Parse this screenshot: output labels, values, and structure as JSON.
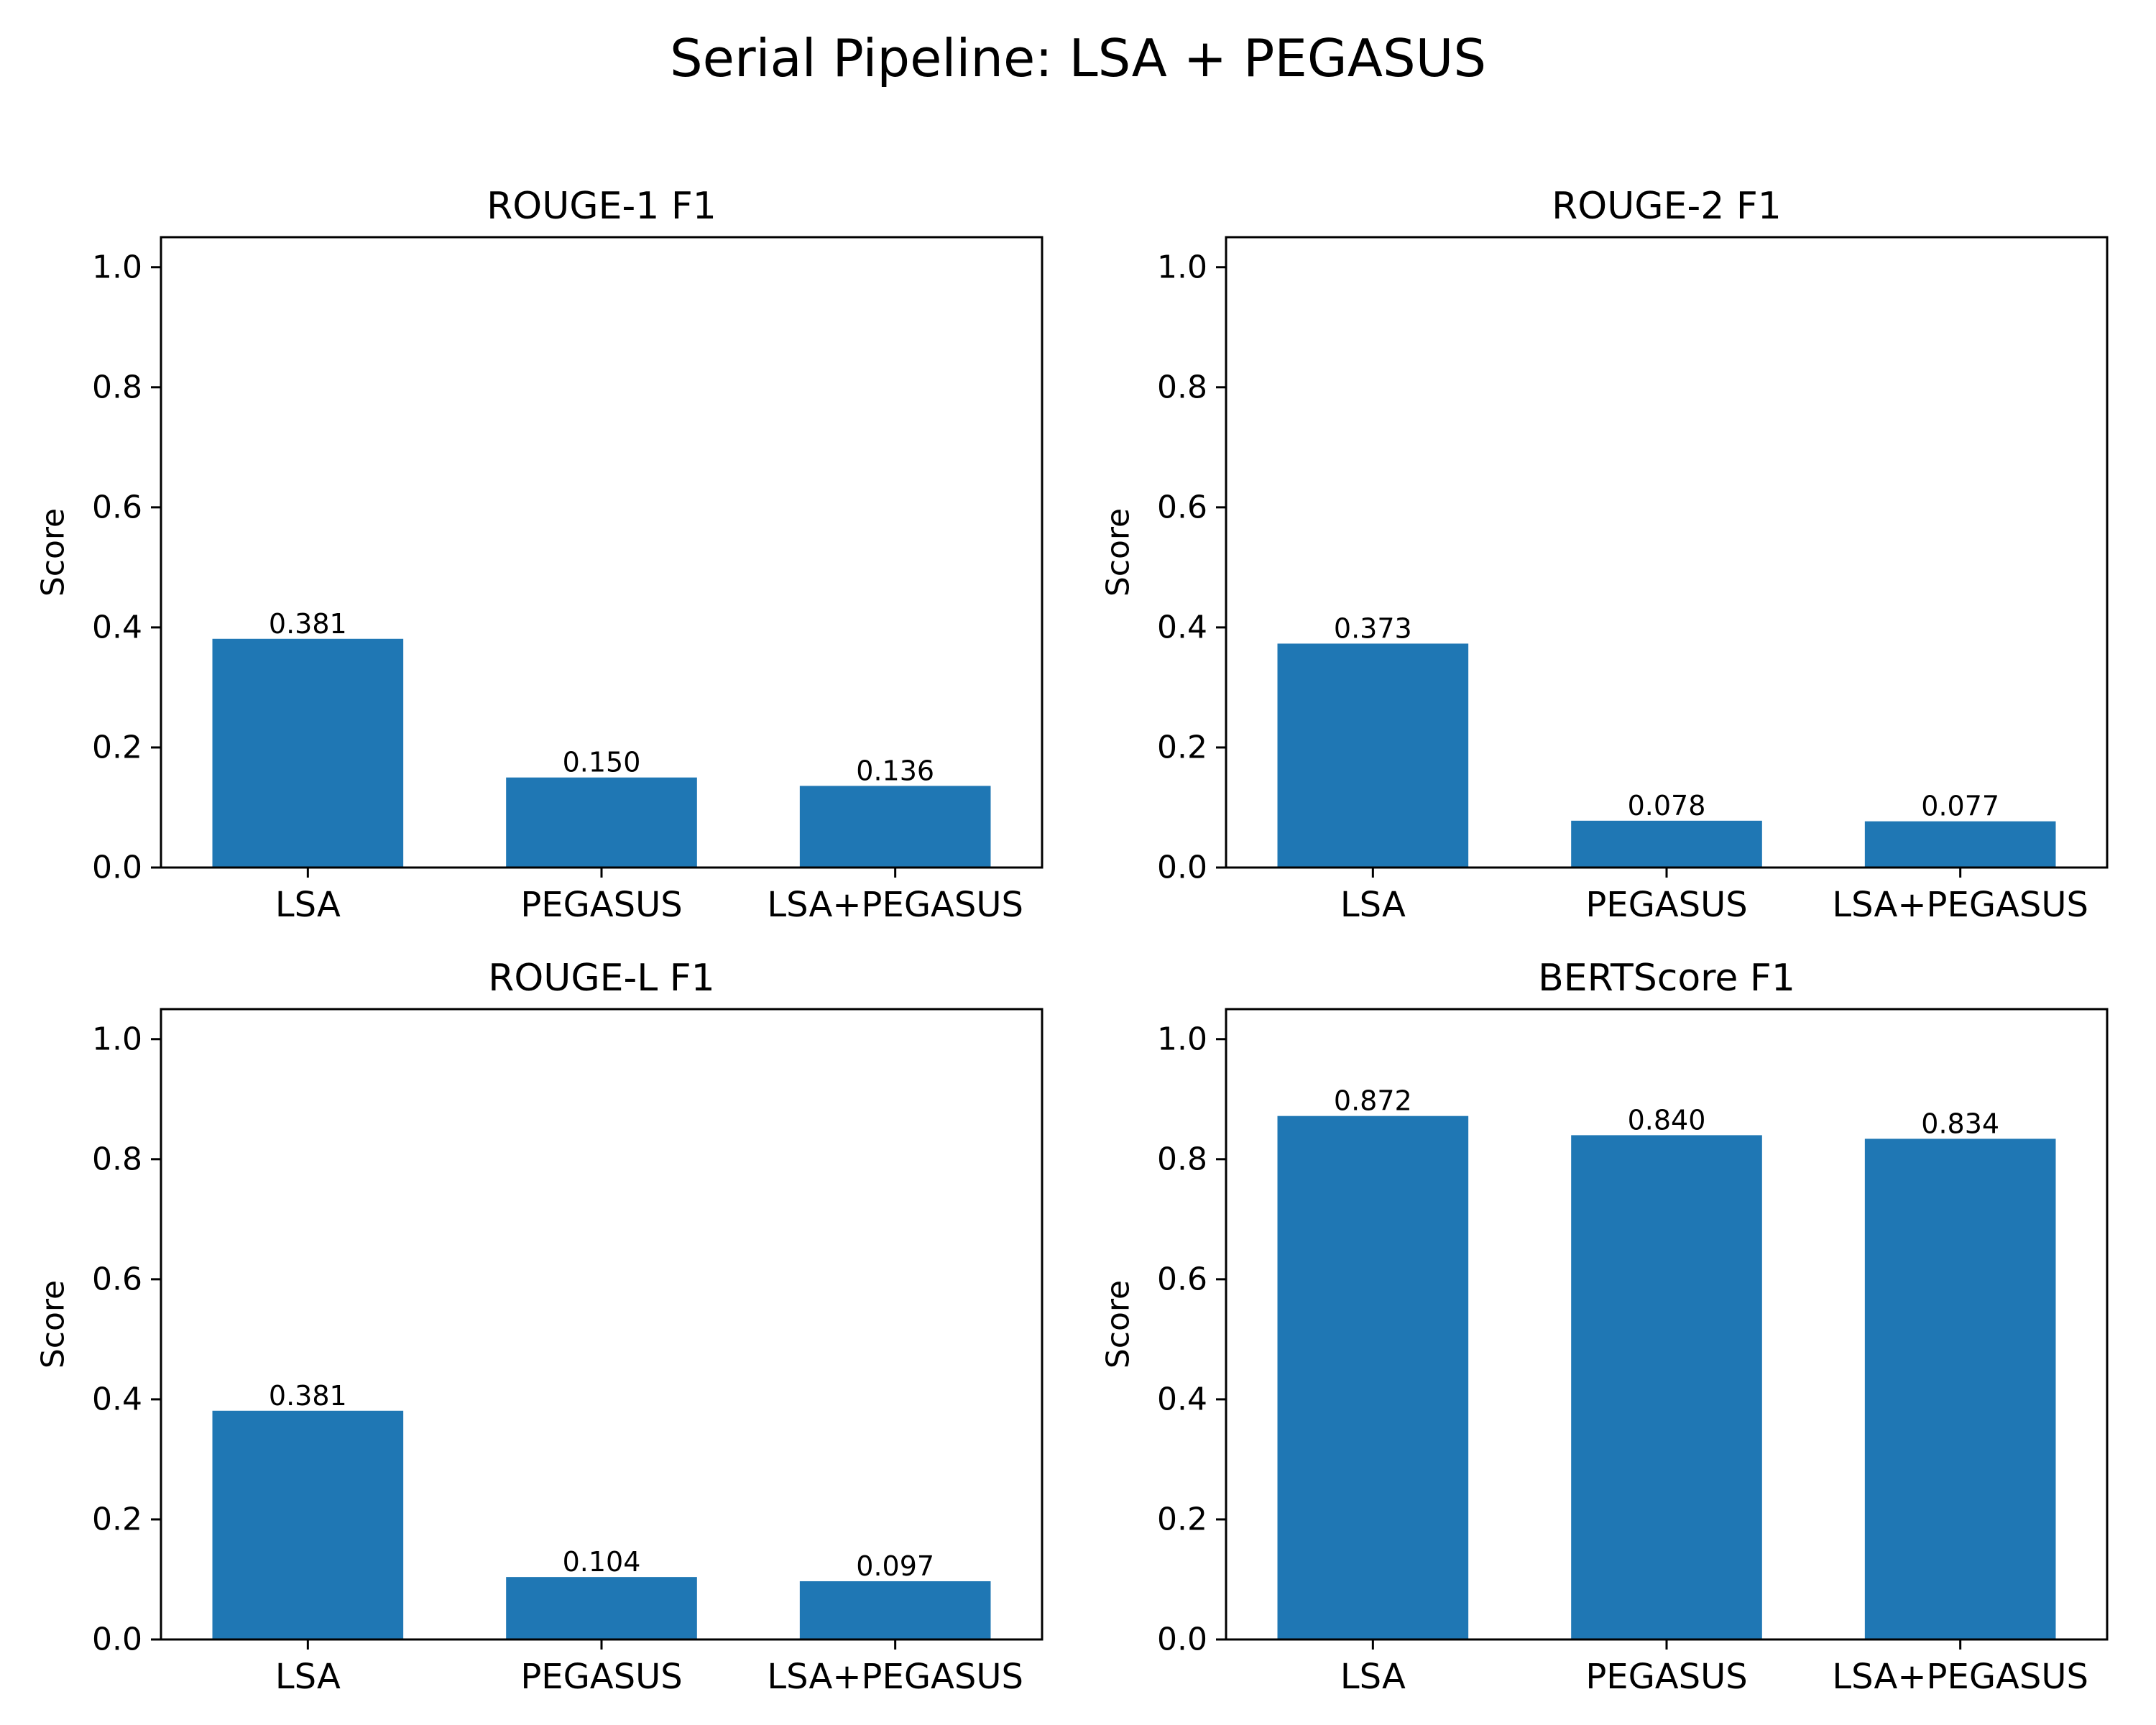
{
  "figure": {
    "title": "Serial Pipeline: LSA + PEGASUS"
  },
  "colors": {
    "bar": "#1f77b4",
    "axis": "#000000",
    "background": "#ffffff"
  },
  "chart_data": [
    {
      "type": "bar",
      "title": "ROUGE-1 F1",
      "xlabel": "",
      "ylabel": "Score",
      "ylim": [
        0,
        1.05
      ],
      "yticks": [
        "0.0",
        "0.2",
        "0.4",
        "0.6",
        "0.8",
        "1.0"
      ],
      "categories": [
        "LSA",
        "PEGASUS",
        "LSA+PEGASUS"
      ],
      "values": [
        0.381,
        0.15,
        0.136
      ],
      "value_labels": [
        "0.381",
        "0.150",
        "0.136"
      ],
      "grid": false
    },
    {
      "type": "bar",
      "title": "ROUGE-2 F1",
      "xlabel": "",
      "ylabel": "Score",
      "ylim": [
        0,
        1.05
      ],
      "yticks": [
        "0.0",
        "0.2",
        "0.4",
        "0.6",
        "0.8",
        "1.0"
      ],
      "categories": [
        "LSA",
        "PEGASUS",
        "LSA+PEGASUS"
      ],
      "values": [
        0.373,
        0.078,
        0.077
      ],
      "value_labels": [
        "0.373",
        "0.078",
        "0.077"
      ],
      "grid": false
    },
    {
      "type": "bar",
      "title": "ROUGE-L F1",
      "xlabel": "",
      "ylabel": "Score",
      "ylim": [
        0,
        1.05
      ],
      "yticks": [
        "0.0",
        "0.2",
        "0.4",
        "0.6",
        "0.8",
        "1.0"
      ],
      "categories": [
        "LSA",
        "PEGASUS",
        "LSA+PEGASUS"
      ],
      "values": [
        0.381,
        0.104,
        0.097
      ],
      "value_labels": [
        "0.381",
        "0.104",
        "0.097"
      ],
      "grid": false
    },
    {
      "type": "bar",
      "title": "BERTScore F1",
      "xlabel": "",
      "ylabel": "Score",
      "ylim": [
        0,
        1.05
      ],
      "yticks": [
        "0.0",
        "0.2",
        "0.4",
        "0.6",
        "0.8",
        "1.0"
      ],
      "categories": [
        "LSA",
        "PEGASUS",
        "LSA+PEGASUS"
      ],
      "values": [
        0.872,
        0.84,
        0.834
      ],
      "value_labels": [
        "0.872",
        "0.840",
        "0.834"
      ],
      "grid": false
    }
  ]
}
